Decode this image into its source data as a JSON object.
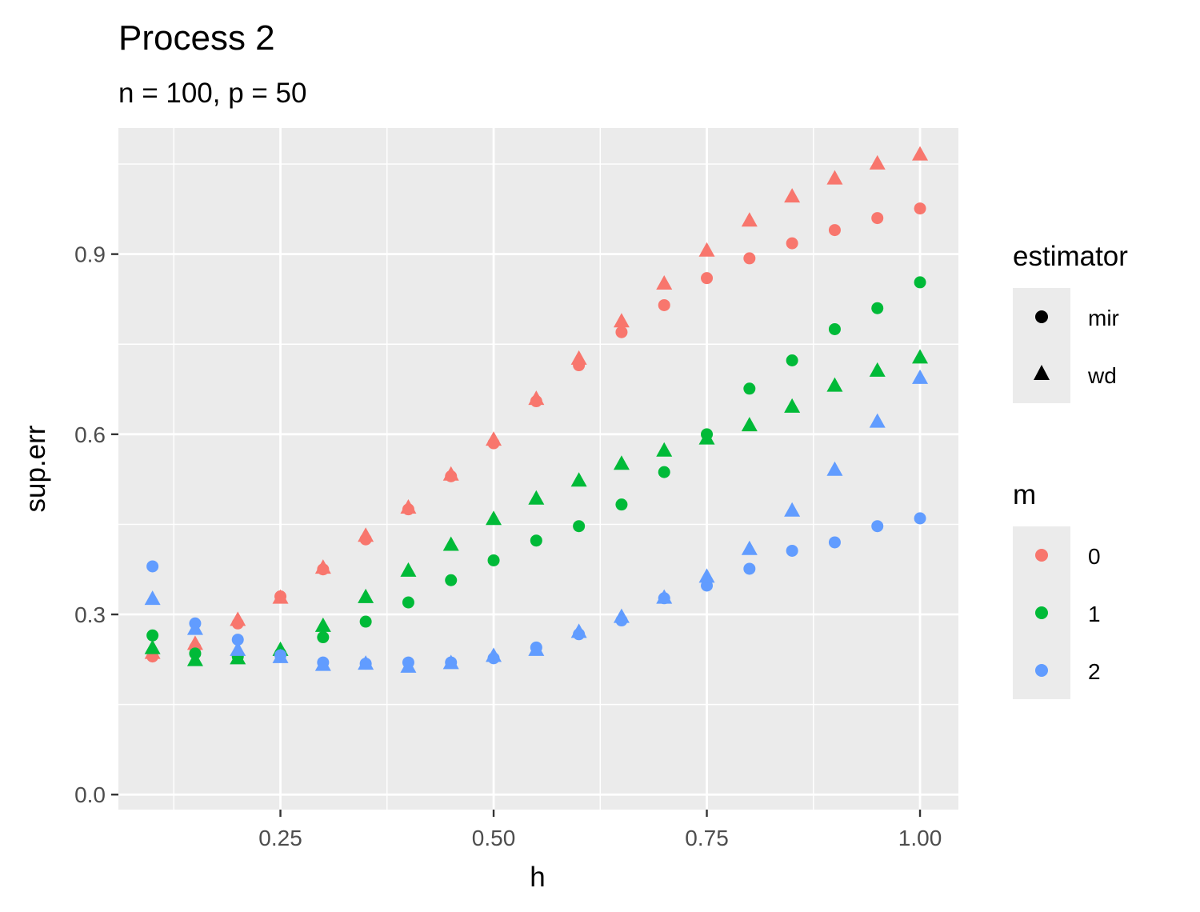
{
  "chart_data": {
    "type": "scatter",
    "title": "Process 2",
    "subtitle": "n = 100, p = 50",
    "xlabel": "h",
    "ylabel": "sup.err",
    "xlim": [
      0.06,
      1.045
    ],
    "ylim": [
      -0.025,
      1.11
    ],
    "x_ticks": [
      0.25,
      0.5,
      0.75,
      1.0
    ],
    "x_tick_labels": [
      "0.25",
      "0.50",
      "0.75",
      "1.00"
    ],
    "y_ticks": [
      0.0,
      0.3,
      0.6,
      0.9
    ],
    "y_tick_labels": [
      "0.0",
      "0.3",
      "0.6",
      "0.9"
    ],
    "grid": true,
    "legend_placement": "right",
    "colors": {
      "0": "#F8766D",
      "1": "#00BA38",
      "2": "#619CFF"
    },
    "panel_background": "#EBEBEB",
    "legends": {
      "estimator": {
        "title": "estimator",
        "entries": [
          {
            "label": "mir",
            "shape": "circle"
          },
          {
            "label": "wd",
            "shape": "triangle"
          }
        ]
      },
      "m": {
        "title": "m",
        "entries": [
          {
            "label": "0",
            "color": "#F8766D"
          },
          {
            "label": "1",
            "color": "#00BA38"
          },
          {
            "label": "2",
            "color": "#619CFF"
          }
        ]
      }
    },
    "x": [
      0.1,
      0.15,
      0.2,
      0.25,
      0.3,
      0.35,
      0.4,
      0.45,
      0.5,
      0.55,
      0.6,
      0.65,
      0.7,
      0.75,
      0.8,
      0.85,
      0.9,
      0.95,
      1.0
    ],
    "series": [
      {
        "m": "0",
        "estimator": "mir",
        "values": [
          0.23,
          0.245,
          0.285,
          0.33,
          0.375,
          0.425,
          0.475,
          0.53,
          0.585,
          0.655,
          0.715,
          0.77,
          0.815,
          0.86,
          0.893,
          0.918,
          0.94,
          0.96,
          0.976
        ]
      },
      {
        "m": "0",
        "estimator": "wd",
        "values": [
          0.235,
          0.25,
          0.29,
          0.327,
          0.377,
          0.43,
          0.477,
          0.532,
          0.59,
          0.658,
          0.725,
          0.787,
          0.85,
          0.905,
          0.955,
          0.995,
          1.025,
          1.05,
          1.065
        ]
      },
      {
        "m": "1",
        "estimator": "mir",
        "values": [
          0.265,
          0.235,
          0.23,
          0.235,
          0.262,
          0.288,
          0.32,
          0.357,
          0.39,
          0.423,
          0.447,
          0.483,
          0.537,
          0.6,
          0.676,
          0.723,
          0.775,
          0.81,
          0.853
        ]
      },
      {
        "m": "1",
        "estimator": "wd",
        "values": [
          0.243,
          0.223,
          0.226,
          0.24,
          0.28,
          0.328,
          0.372,
          0.415,
          0.458,
          0.492,
          0.522,
          0.55,
          0.572,
          0.592,
          0.614,
          0.645,
          0.68,
          0.705,
          0.727
        ]
      },
      {
        "m": "2",
        "estimator": "mir",
        "values": [
          0.38,
          0.285,
          0.258,
          0.232,
          0.22,
          0.218,
          0.22,
          0.22,
          0.227,
          0.245,
          0.267,
          0.29,
          0.327,
          0.348,
          0.376,
          0.406,
          0.42,
          0.447,
          0.46
        ]
      },
      {
        "m": "2",
        "estimator": "wd",
        "values": [
          0.325,
          0.275,
          0.24,
          0.228,
          0.215,
          0.217,
          0.212,
          0.218,
          0.23,
          0.24,
          0.27,
          0.295,
          0.327,
          0.362,
          0.408,
          0.472,
          0.54,
          0.62,
          0.693
        ]
      }
    ]
  }
}
